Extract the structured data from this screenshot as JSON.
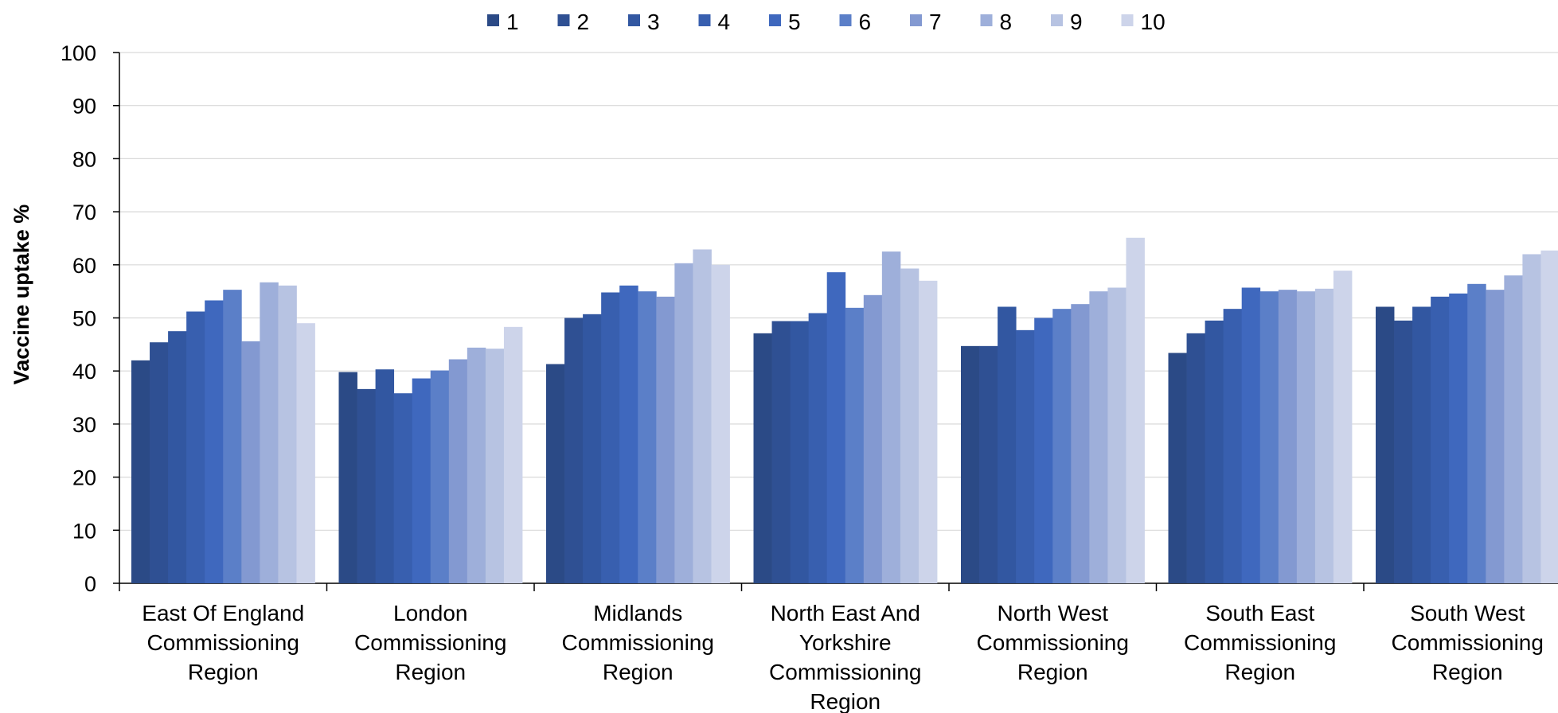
{
  "chart_data": {
    "type": "bar",
    "title": "",
    "xlabel": "",
    "ylabel": "Vaccine uptake %",
    "ylim": [
      0,
      100
    ],
    "yticks": [
      0,
      10,
      20,
      30,
      40,
      50,
      60,
      70,
      80,
      90,
      100
    ],
    "grid": true,
    "legend_position": "top",
    "categories": [
      "East Of England Commissioning Region",
      "London Commissioning Region",
      "Midlands Commissioning Region",
      "North East And Yorkshire Commissioning Region",
      "North West Commissioning Region",
      "South East Commissioning Region",
      "South West Commissioning Region"
    ],
    "category_label_lines": [
      [
        "East Of England",
        "Commissioning",
        "Region"
      ],
      [
        "London",
        "Commissioning",
        "Region"
      ],
      [
        "Midlands",
        "Commissioning",
        "Region"
      ],
      [
        "North East And",
        "Yorkshire",
        "Commissioning",
        "Region"
      ],
      [
        "North West",
        "Commissioning",
        "Region"
      ],
      [
        "South East",
        "Commissioning",
        "Region"
      ],
      [
        "South West",
        "Commissioning",
        "Region"
      ]
    ],
    "series": [
      {
        "name": "1",
        "color": "#2B4A86",
        "values": [
          42.0,
          39.8,
          41.3,
          47.1,
          44.7,
          43.4,
          52.1
        ]
      },
      {
        "name": "2",
        "color": "#2F5093",
        "values": [
          45.4,
          36.6,
          50.0,
          49.4,
          44.7,
          47.1,
          49.5
        ]
      },
      {
        "name": "3",
        "color": "#3257A1",
        "values": [
          47.5,
          40.3,
          50.7,
          49.4,
          52.1,
          49.5,
          52.1
        ]
      },
      {
        "name": "4",
        "color": "#385FAF",
        "values": [
          51.2,
          35.8,
          54.8,
          50.9,
          47.7,
          51.7,
          54.0
        ]
      },
      {
        "name": "5",
        "color": "#3F68BE",
        "values": [
          53.3,
          38.6,
          56.1,
          58.6,
          50.0,
          55.7,
          54.6
        ]
      },
      {
        "name": "6",
        "color": "#5B7FC8",
        "values": [
          55.3,
          40.1,
          55.0,
          51.9,
          51.7,
          55.0,
          56.4
        ]
      },
      {
        "name": "7",
        "color": "#8399D1",
        "values": [
          45.6,
          42.2,
          54.0,
          54.3,
          52.6,
          55.3,
          55.3
        ]
      },
      {
        "name": "8",
        "color": "#9EAFDA",
        "values": [
          56.7,
          44.4,
          60.3,
          62.5,
          55.0,
          55.0,
          58.0
        ]
      },
      {
        "name": "9",
        "color": "#B7C3E2",
        "values": [
          56.1,
          44.2,
          62.9,
          59.3,
          55.7,
          55.5,
          62.0
        ]
      },
      {
        "name": "10",
        "color": "#CDD4EA",
        "values": [
          49.0,
          48.3,
          60.0,
          57.0,
          65.1,
          58.9,
          62.7
        ]
      }
    ]
  }
}
